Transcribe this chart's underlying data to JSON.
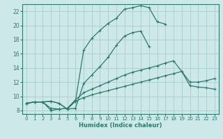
{
  "xlabel": "Humidex (Indice chaleur)",
  "bg_color": "#cce8e8",
  "grid_color": "#aacccc",
  "line_color": "#2e7a6e",
  "xlim": [
    -0.5,
    23.5
  ],
  "ylim": [
    7.5,
    23.0
  ],
  "xticks": [
    0,
    1,
    2,
    3,
    4,
    5,
    6,
    7,
    8,
    9,
    10,
    11,
    12,
    13,
    14,
    15,
    16,
    17,
    18,
    19,
    20,
    21,
    22,
    23
  ],
  "yticks": [
    8,
    10,
    12,
    14,
    16,
    18,
    20,
    22
  ],
  "line1_x": [
    0,
    1,
    2,
    3,
    4,
    5,
    6,
    7,
    8,
    9,
    10,
    11,
    12,
    13,
    14,
    15,
    16,
    17,
    18,
    19,
    20,
    21,
    22,
    23
  ],
  "line1_y": [
    9.0,
    9.2,
    9.2,
    9.3,
    9.0,
    8.2,
    9.3,
    16.5,
    18.2,
    19.3,
    20.3,
    21.0,
    22.3,
    22.5,
    22.8,
    22.5,
    20.5,
    20.2,
    null,
    null,
    null,
    null,
    null,
    null
  ],
  "line2_x": [
    0,
    1,
    2,
    3,
    4,
    5,
    6,
    7,
    8,
    9,
    10,
    11,
    12,
    13,
    14,
    15,
    16,
    17,
    18,
    19,
    20,
    21,
    22,
    23
  ],
  "line2_y": [
    9.0,
    9.2,
    9.2,
    9.3,
    9.0,
    8.2,
    8.3,
    11.8,
    13.0,
    14.2,
    15.5,
    17.2,
    18.5,
    19.0,
    19.2,
    17.0,
    null,
    null,
    null,
    null,
    null,
    null,
    null,
    null
  ],
  "line3_x": [
    0,
    1,
    2,
    3,
    4,
    5,
    6,
    7,
    8,
    9,
    10,
    11,
    12,
    13,
    14,
    15,
    16,
    17,
    18,
    19,
    20,
    21,
    22,
    23
  ],
  "line3_y": [
    9.0,
    9.2,
    9.2,
    8.3,
    8.2,
    8.3,
    9.5,
    10.5,
    11.0,
    11.5,
    12.0,
    12.5,
    13.0,
    13.4,
    13.7,
    14.0,
    14.3,
    14.7,
    15.0,
    13.5,
    12.0,
    12.0,
    12.2,
    12.5
  ],
  "line4_x": [
    0,
    1,
    2,
    3,
    4,
    5,
    6,
    7,
    8,
    9,
    10,
    11,
    12,
    13,
    14,
    15,
    16,
    17,
    18,
    19,
    20,
    21,
    22,
    23
  ],
  "line4_y": [
    9.0,
    9.2,
    9.2,
    8.0,
    8.2,
    8.3,
    9.3,
    9.8,
    10.2,
    10.5,
    10.8,
    11.1,
    11.4,
    11.7,
    12.0,
    12.3,
    12.6,
    12.9,
    13.2,
    13.5,
    11.5,
    11.3,
    11.2,
    11.0
  ]
}
